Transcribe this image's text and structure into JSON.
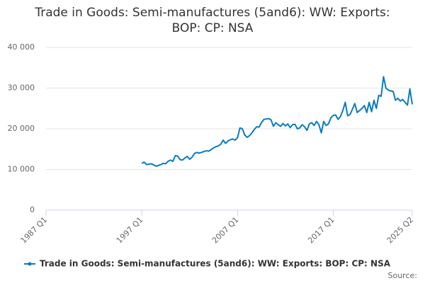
{
  "chart_data": {
    "type": "line",
    "title": "Trade in Goods: Semi-manufactures (5and6): WW: Exports: BOP: CP: NSA",
    "source": "Source:",
    "x": [
      "1997 Q1",
      "1997 Q2",
      "1997 Q3",
      "1997 Q4",
      "1998 Q1",
      "1998 Q2",
      "1998 Q3",
      "1998 Q4",
      "1999 Q1",
      "1999 Q2",
      "1999 Q3",
      "1999 Q4",
      "2000 Q1",
      "2000 Q2",
      "2000 Q3",
      "2000 Q4",
      "2001 Q1",
      "2001 Q2",
      "2001 Q3",
      "2001 Q4",
      "2002 Q1",
      "2002 Q2",
      "2002 Q3",
      "2002 Q4",
      "2003 Q1",
      "2003 Q2",
      "2003 Q3",
      "2003 Q4",
      "2004 Q1",
      "2004 Q2",
      "2004 Q3",
      "2004 Q4",
      "2005 Q1",
      "2005 Q2",
      "2005 Q3",
      "2005 Q4",
      "2006 Q1",
      "2006 Q2",
      "2006 Q3",
      "2006 Q4",
      "2007 Q1",
      "2007 Q2",
      "2007 Q3",
      "2007 Q4",
      "2008 Q1",
      "2008 Q2",
      "2008 Q3",
      "2008 Q4",
      "2009 Q1",
      "2009 Q2",
      "2009 Q3",
      "2009 Q4",
      "2010 Q1",
      "2010 Q2",
      "2010 Q3",
      "2010 Q4",
      "2011 Q1",
      "2011 Q2",
      "2011 Q3",
      "2011 Q4",
      "2012 Q1",
      "2012 Q2",
      "2012 Q3",
      "2012 Q4",
      "2013 Q1",
      "2013 Q2",
      "2013 Q3",
      "2013 Q4",
      "2014 Q1",
      "2014 Q2",
      "2014 Q3",
      "2014 Q4",
      "2015 Q1",
      "2015 Q2",
      "2015 Q3",
      "2015 Q4",
      "2016 Q1",
      "2016 Q2",
      "2016 Q3",
      "2016 Q4",
      "2017 Q1",
      "2017 Q2",
      "2017 Q3",
      "2017 Q4",
      "2018 Q1",
      "2018 Q2",
      "2018 Q3",
      "2018 Q4",
      "2019 Q1",
      "2019 Q2",
      "2019 Q3",
      "2019 Q4",
      "2020 Q1",
      "2020 Q2",
      "2020 Q3",
      "2020 Q4",
      "2021 Q1",
      "2021 Q2",
      "2021 Q3",
      "2021 Q4",
      "2022 Q1",
      "2022 Q2",
      "2022 Q3",
      "2022 Q4",
      "2023 Q1",
      "2023 Q2",
      "2023 Q3",
      "2023 Q4",
      "2024 Q1",
      "2024 Q2",
      "2024 Q3",
      "2024 Q4",
      "2025 Q1",
      "2025 Q2"
    ],
    "series": [
      {
        "name": "Trade in Goods: Semi-manufactures (5and6): WW: Exports: BOP: CP: NSA",
        "color": "#0b7bbf",
        "values": [
          11500,
          11800,
          11200,
          11300,
          11400,
          11100,
          10800,
          11000,
          11200,
          11500,
          11400,
          12000,
          12300,
          12000,
          13400,
          13300,
          12400,
          12300,
          12800,
          13200,
          12500,
          13000,
          13900,
          14200,
          14000,
          14200,
          14400,
          14600,
          14500,
          14900,
          15300,
          15600,
          15800,
          16200,
          17200,
          16400,
          17000,
          17300,
          17500,
          17200,
          17800,
          20200,
          20000,
          18500,
          17900,
          18300,
          19000,
          19800,
          20500,
          20400,
          21500,
          22300,
          22400,
          22500,
          22200,
          20600,
          21500,
          21000,
          20600,
          21300,
          20700,
          21200,
          20300,
          21000,
          21100,
          20000,
          20200,
          21000,
          20500,
          19600,
          21200,
          21500,
          20800,
          21800,
          21000,
          19000,
          21800,
          20800,
          21200,
          22700,
          23300,
          23400,
          22300,
          23000,
          24500,
          26500,
          23200,
          23500,
          24800,
          26200,
          24000,
          24500,
          25000,
          25700,
          24000,
          26500,
          24200,
          27000,
          25000,
          28200,
          28000,
          32800,
          30000,
          29500,
          29300,
          29200,
          27000,
          27500,
          26800,
          27200,
          26500,
          25800,
          29800,
          26000
        ]
      }
    ],
    "xlim": [
      "1987 Q1",
      "2025 Q2"
    ],
    "xticks": [
      "1987 Q1",
      "1997 Q1",
      "2007 Q1",
      "2017 Q1",
      "2025 Q2"
    ],
    "ylim": [
      0,
      40000
    ],
    "yticks": [
      0,
      {
        "value": 10000,
        "label": "10 000"
      },
      {
        "value": 20000,
        "label": "20 000"
      },
      {
        "value": 30000,
        "label": "30 000"
      },
      {
        "value": 40000,
        "label": "40 000"
      }
    ],
    "grid": true
  }
}
